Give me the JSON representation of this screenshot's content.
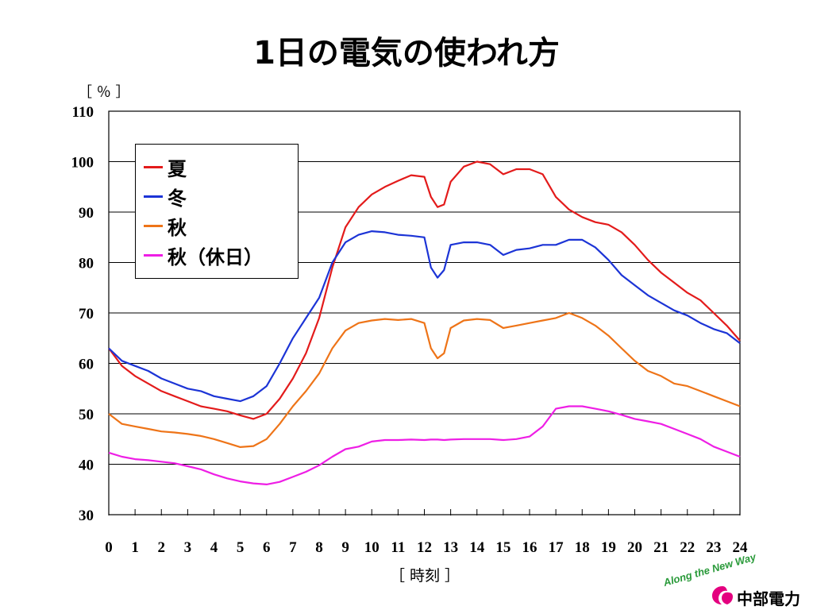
{
  "slide": {
    "title": "1日の電気の使われ方",
    "y_unit": "［ ％ ］",
    "x_unit": "［ 時刻 ］"
  },
  "logo": {
    "tagline": "Along the New Way",
    "company": "中部電力",
    "mark_color": "#e4007f"
  },
  "chart_data": {
    "type": "line",
    "title": "1日の電気の使われ方",
    "xlabel": "［ 時刻 ］",
    "ylabel": "［ ％ ］",
    "xlim": [
      0,
      24
    ],
    "ylim": [
      30,
      110
    ],
    "x_ticks": [
      0,
      1,
      2,
      3,
      4,
      5,
      6,
      7,
      8,
      9,
      10,
      11,
      12,
      13,
      14,
      15,
      16,
      17,
      18,
      19,
      20,
      21,
      22,
      23,
      24
    ],
    "y_ticks": [
      30,
      40,
      50,
      60,
      70,
      80,
      90,
      100,
      110
    ],
    "grid": "horizontal",
    "legend_position": "top-left",
    "x": [
      0,
      0.5,
      1,
      1.5,
      2,
      2.5,
      3,
      3.5,
      4,
      4.5,
      5,
      5.5,
      6,
      6.5,
      7,
      7.5,
      8,
      8.5,
      9,
      9.5,
      10,
      10.5,
      11,
      11.5,
      12,
      12.25,
      12.5,
      12.75,
      13,
      13.5,
      14,
      14.5,
      15,
      15.5,
      16,
      16.5,
      17,
      17.5,
      18,
      18.5,
      19,
      19.5,
      20,
      20.5,
      21,
      21.5,
      22,
      22.5,
      23,
      23.5,
      24
    ],
    "series": [
      {
        "name": "夏",
        "color": "#e31b1b",
        "values": [
          63,
          59.5,
          57.5,
          56,
          54.5,
          53.5,
          52.5,
          51.5,
          51,
          50.5,
          49.7,
          49,
          50,
          53,
          57,
          62,
          69,
          79,
          87,
          91,
          93.5,
          95,
          96.2,
          97.3,
          97,
          93,
          91,
          91.5,
          96,
          99,
          100,
          99.5,
          97.5,
          98.5,
          98.5,
          97.5,
          93,
          90.5,
          89,
          88,
          87.5,
          86,
          83.5,
          80.5,
          78,
          76,
          74,
          72.5,
          70,
          67.5,
          64.5
        ]
      },
      {
        "name": "冬",
        "color": "#1c34d6",
        "values": [
          63,
          60.5,
          59.5,
          58.5,
          57,
          56,
          55,
          54.5,
          53.5,
          53,
          52.5,
          53.5,
          55.5,
          60,
          65,
          69,
          73,
          80,
          84,
          85.5,
          86.2,
          86,
          85.5,
          85.3,
          85,
          79,
          77,
          78.5,
          83.5,
          84,
          84,
          83.5,
          81.5,
          82.5,
          82.8,
          83.5,
          83.5,
          84.5,
          84.5,
          83,
          80.5,
          77.5,
          75.5,
          73.5,
          72,
          70.5,
          69.5,
          68,
          66.8,
          66,
          64
        ]
      },
      {
        "name": "秋",
        "color": "#ee7418",
        "values": [
          50,
          48,
          47.5,
          47,
          46.5,
          46.3,
          46,
          45.6,
          45,
          44.2,
          43.4,
          43.6,
          45,
          48,
          51.5,
          54.5,
          58,
          63,
          66.5,
          68,
          68.5,
          68.8,
          68.6,
          68.8,
          68,
          63,
          61,
          62,
          67,
          68.5,
          68.8,
          68.6,
          67,
          67.5,
          68,
          68.5,
          69,
          70,
          69,
          67.5,
          65.5,
          63,
          60.5,
          58.5,
          57.5,
          56,
          55.5,
          54.5,
          53.5,
          52.5,
          51.5
        ]
      },
      {
        "name": "秋（休日）",
        "color": "#ee1ee5",
        "values": [
          42.3,
          41.5,
          41,
          40.8,
          40.5,
          40.2,
          39.6,
          39,
          38,
          37.2,
          36.6,
          36.2,
          36,
          36.5,
          37.5,
          38.5,
          39.8,
          41.5,
          43,
          43.5,
          44.5,
          44.8,
          44.8,
          44.9,
          44.8,
          44.9,
          44.9,
          44.8,
          44.9,
          45,
          45,
          45,
          44.8,
          45,
          45.5,
          47.5,
          51,
          51.5,
          51.5,
          51,
          50.5,
          49.8,
          49,
          48.5,
          48,
          47,
          46,
          45,
          43.5,
          42.5,
          41.5
        ]
      }
    ]
  }
}
